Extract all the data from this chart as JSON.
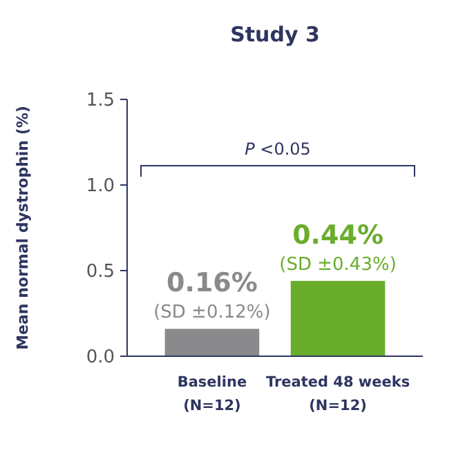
{
  "chart_data": {
    "type": "bar",
    "title": "Study 3",
    "ylabel": "Mean normal dystrophin (%)",
    "categories": [
      "Baseline\n(N=12)",
      "Treated 48 weeks\n(N=12)"
    ],
    "values": [
      0.16,
      0.44
    ],
    "colors": [
      "#8a8a8c",
      "#6aad2d"
    ],
    "value_labels": [
      "0.16%\n(SD ±0.12%)",
      "0.44%\n(SD ±0.43%)"
    ],
    "ylim": [
      0,
      1.5
    ],
    "yticks": [
      {
        "value": 0,
        "label": "0.0"
      },
      0.5,
      {
        "value": 1,
        "label": "1.0"
      },
      1.5
    ],
    "annotations": [
      "P <0.05"
    ],
    "grid": false
  }
}
